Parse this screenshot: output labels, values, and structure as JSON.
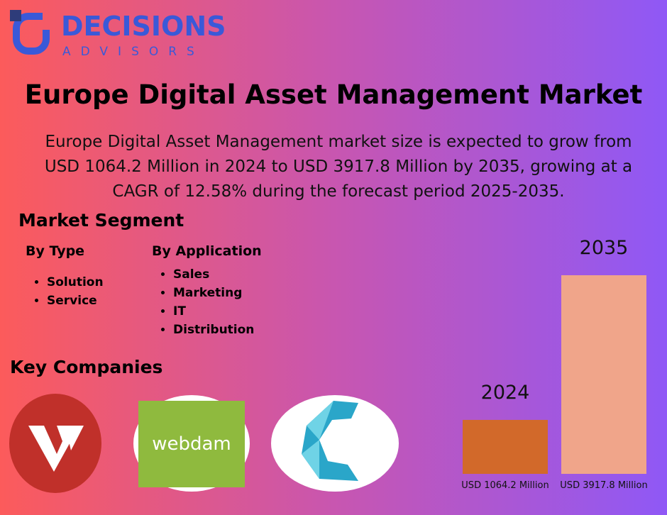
{
  "logo": {
    "name": "DECISIONS",
    "tagline": "ADVISORS"
  },
  "title": "Europe Digital Asset Management Market",
  "description": [
    "Europe Digital Asset Management market size is expected to grow from",
    "USD 1064.2 Million in 2024 to USD 3917.8 Million by 2035, growing at a",
    "CAGR of 12.58% during the forecast period 2025-2035."
  ],
  "segment": {
    "heading": "Market Segment",
    "groups": [
      {
        "title": "By Type",
        "items": [
          "Solution",
          "Service"
        ]
      },
      {
        "title": "By Application",
        "items": [
          "Sales",
          "Marketing",
          "IT",
          "Distribution"
        ]
      }
    ]
  },
  "companies": {
    "heading": "Key Companies",
    "logo_text": "webdam"
  },
  "chart_data": {
    "type": "bar",
    "categories": [
      "2024",
      "2035"
    ],
    "values": [
      1064.2,
      3917.8
    ],
    "value_labels": [
      "USD 1064.2 Million",
      "USD 3917.8 Million"
    ],
    "colors": [
      "#d2692a",
      "#f0a58a"
    ]
  }
}
